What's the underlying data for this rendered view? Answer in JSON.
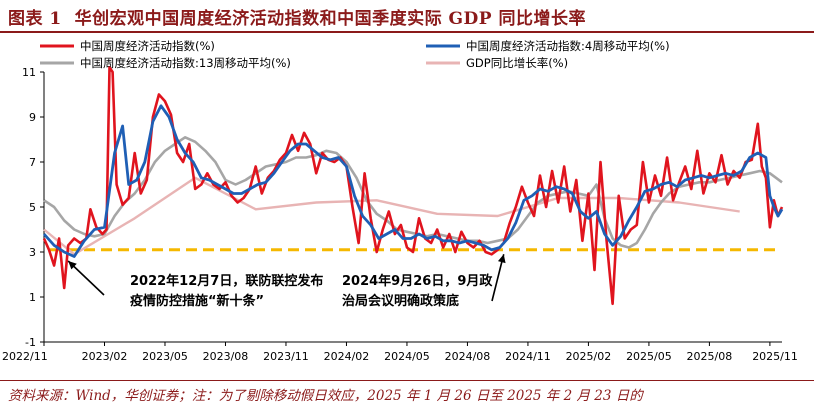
{
  "header": {
    "figure_label": "图表 1",
    "title": "华创宏观中国周度经济活动指数和中国季度实际 GDP 同比增长率"
  },
  "footer": {
    "source_note": "资料来源：Wind，华创证券；注：为了剔除移动假日效应，2025 年 1 月 26 日至 2025 年 2 月 23 日的"
  },
  "colors": {
    "weekly": "#e0141e",
    "ma4": "#1f5fb5",
    "ma13": "#a6a6a6",
    "gdp": "#e8b4b4",
    "ref_line": "#f5b800",
    "title": "#8b1a1a"
  },
  "chart_data": {
    "type": "line",
    "legend": [
      {
        "name": "中国周度经济活动指数(%)",
        "key": "weekly"
      },
      {
        "name": "中国周度经济活动指数:4周移动平均(%)",
        "key": "ma4"
      },
      {
        "name": "中国周度经济活动指数:13周移动平均(%)",
        "key": "ma13"
      },
      {
        "name": "GDP同比增长率(%)",
        "key": "gdp"
      }
    ],
    "legend_position": "top",
    "x_tick_labels": [
      "2022/11",
      "2023/02",
      "2023/05",
      "2023/08",
      "2023/11",
      "2024/02",
      "2024/05",
      "2024/08",
      "2024/11",
      "2025/02",
      "2025/05",
      "2025/08",
      "2025/11"
    ],
    "y_tick_labels": [
      "-1",
      "1",
      "3",
      "5",
      "7",
      "9",
      "11"
    ],
    "ylim": [
      -1,
      11
    ],
    "xlim_months": [
      0,
      36.6
    ],
    "reference_line": 3.1,
    "annotations": [
      {
        "text": [
          "2022年12月7日，联防联控发布",
          "疫情防控措施“新十条”"
        ],
        "target_month": 1.2,
        "target_value": 2.6
      },
      {
        "text": [
          "2024年9月26日，9月政",
          "治局会议明确政策底"
        ],
        "target_month": 22.8,
        "target_value": 2.9
      }
    ],
    "series": {
      "weekly": [
        [
          0,
          3.6
        ],
        [
          0.25,
          3.1
        ],
        [
          0.5,
          2.4
        ],
        [
          0.75,
          3.6
        ],
        [
          1.0,
          1.4
        ],
        [
          1.2,
          3.3
        ],
        [
          1.5,
          3.6
        ],
        [
          1.8,
          3.4
        ],
        [
          2.1,
          3.6
        ],
        [
          2.3,
          4.9
        ],
        [
          2.6,
          4.1
        ],
        [
          2.9,
          3.8
        ],
        [
          3.1,
          4.0
        ],
        [
          3.25,
          11.2
        ],
        [
          3.4,
          11.0
        ],
        [
          3.6,
          6.0
        ],
        [
          3.9,
          5.1
        ],
        [
          4.2,
          5.4
        ],
        [
          4.5,
          7.4
        ],
        [
          4.8,
          5.6
        ],
        [
          5.1,
          6.2
        ],
        [
          5.4,
          9.0
        ],
        [
          5.7,
          10.0
        ],
        [
          6.0,
          9.7
        ],
        [
          6.3,
          9.1
        ],
        [
          6.6,
          7.4
        ],
        [
          6.9,
          7.0
        ],
        [
          7.2,
          7.8
        ],
        [
          7.5,
          5.8
        ],
        [
          7.8,
          6.0
        ],
        [
          8.1,
          6.5
        ],
        [
          8.4,
          6.0
        ],
        [
          8.7,
          5.8
        ],
        [
          9.0,
          6.1
        ],
        [
          9.3,
          5.5
        ],
        [
          9.6,
          5.2
        ],
        [
          9.9,
          5.4
        ],
        [
          10.2,
          5.8
        ],
        [
          10.5,
          6.8
        ],
        [
          10.8,
          5.6
        ],
        [
          11.1,
          6.3
        ],
        [
          11.4,
          6.6
        ],
        [
          11.7,
          7.1
        ],
        [
          12.0,
          7.4
        ],
        [
          12.3,
          8.2
        ],
        [
          12.6,
          7.5
        ],
        [
          12.9,
          8.3
        ],
        [
          13.2,
          7.8
        ],
        [
          13.5,
          6.5
        ],
        [
          13.8,
          7.4
        ],
        [
          14.1,
          7.1
        ],
        [
          14.4,
          7.0
        ],
        [
          14.7,
          7.2
        ],
        [
          15.0,
          6.8
        ],
        [
          15.3,
          5.0
        ],
        [
          15.6,
          3.4
        ],
        [
          15.9,
          6.5
        ],
        [
          16.2,
          4.5
        ],
        [
          16.5,
          3.0
        ],
        [
          16.8,
          4.0
        ],
        [
          17.1,
          4.8
        ],
        [
          17.4,
          3.8
        ],
        [
          17.7,
          4.2
        ],
        [
          18.0,
          3.2
        ],
        [
          18.3,
          3.0
        ],
        [
          18.6,
          4.5
        ],
        [
          18.9,
          3.6
        ],
        [
          19.2,
          3.4
        ],
        [
          19.5,
          4.0
        ],
        [
          19.8,
          3.2
        ],
        [
          20.1,
          3.8
        ],
        [
          20.4,
          3.0
        ],
        [
          20.7,
          3.9
        ],
        [
          21.0,
          3.4
        ],
        [
          21.3,
          3.2
        ],
        [
          21.6,
          3.5
        ],
        [
          21.9,
          3.0
        ],
        [
          22.2,
          2.9
        ],
        [
          22.5,
          3.1
        ],
        [
          22.8,
          3.4
        ],
        [
          23.1,
          4.3
        ],
        [
          23.4,
          5.0
        ],
        [
          23.7,
          5.9
        ],
        [
          24.0,
          5.2
        ],
        [
          24.3,
          4.6
        ],
        [
          24.6,
          6.4
        ],
        [
          24.9,
          5.0
        ],
        [
          25.2,
          6.6
        ],
        [
          25.5,
          5.2
        ],
        [
          25.8,
          6.8
        ],
        [
          26.1,
          4.8
        ],
        [
          26.4,
          6.2
        ],
        [
          26.7,
          3.5
        ],
        [
          27.0,
          5.6
        ],
        [
          27.3,
          2.2
        ],
        [
          27.6,
          7.0
        ],
        [
          27.9,
          3.5
        ],
        [
          28.2,
          0.7
        ],
        [
          28.5,
          5.5
        ],
        [
          28.8,
          3.6
        ],
        [
          29.1,
          4.0
        ],
        [
          29.4,
          4.2
        ],
        [
          29.7,
          7.0
        ],
        [
          30.0,
          5.2
        ],
        [
          30.3,
          6.4
        ],
        [
          30.6,
          5.5
        ],
        [
          30.9,
          7.2
        ],
        [
          31.2,
          5.3
        ],
        [
          31.5,
          6.1
        ],
        [
          31.8,
          6.8
        ],
        [
          32.1,
          5.8
        ],
        [
          32.4,
          7.5
        ],
        [
          32.7,
          5.6
        ],
        [
          33.0,
          6.5
        ],
        [
          33.3,
          6.1
        ],
        [
          33.6,
          7.3
        ],
        [
          33.9,
          6.0
        ],
        [
          34.2,
          6.6
        ],
        [
          34.5,
          6.3
        ],
        [
          34.8,
          7.0
        ],
        [
          35.1,
          7.1
        ],
        [
          35.4,
          8.7
        ],
        [
          35.6,
          6.8
        ],
        [
          35.8,
          6.3
        ],
        [
          36.0,
          4.1
        ],
        [
          36.2,
          5.3
        ],
        [
          36.4,
          4.6
        ],
        [
          36.6,
          5.0
        ]
      ],
      "ma4": [
        [
          0,
          3.8
        ],
        [
          0.5,
          3.3
        ],
        [
          1.0,
          3.0
        ],
        [
          1.5,
          2.8
        ],
        [
          2.0,
          3.5
        ],
        [
          2.5,
          4.0
        ],
        [
          3.0,
          4.1
        ],
        [
          3.5,
          7.4
        ],
        [
          3.9,
          8.6
        ],
        [
          4.2,
          6.0
        ],
        [
          4.6,
          6.2
        ],
        [
          5.0,
          7.0
        ],
        [
          5.4,
          8.8
        ],
        [
          5.8,
          9.5
        ],
        [
          6.2,
          9.0
        ],
        [
          6.6,
          8.0
        ],
        [
          7.0,
          7.4
        ],
        [
          7.4,
          7.0
        ],
        [
          7.8,
          6.3
        ],
        [
          8.2,
          6.2
        ],
        [
          8.6,
          6.0
        ],
        [
          9.0,
          5.8
        ],
        [
          9.4,
          5.6
        ],
        [
          9.8,
          5.6
        ],
        [
          10.2,
          5.8
        ],
        [
          10.6,
          6.0
        ],
        [
          11.0,
          6.1
        ],
        [
          11.4,
          6.5
        ],
        [
          11.8,
          7.0
        ],
        [
          12.2,
          7.5
        ],
        [
          12.6,
          7.8
        ],
        [
          13.0,
          7.8
        ],
        [
          13.4,
          7.5
        ],
        [
          13.8,
          7.2
        ],
        [
          14.2,
          7.1
        ],
        [
          14.6,
          7.2
        ],
        [
          15.0,
          6.8
        ],
        [
          15.4,
          5.5
        ],
        [
          15.8,
          4.6
        ],
        [
          16.2,
          4.2
        ],
        [
          16.6,
          3.6
        ],
        [
          17.0,
          3.8
        ],
        [
          17.4,
          4.0
        ],
        [
          17.8,
          3.6
        ],
        [
          18.2,
          3.6
        ],
        [
          18.6,
          3.8
        ],
        [
          19.0,
          3.6
        ],
        [
          19.4,
          3.7
        ],
        [
          19.8,
          3.5
        ],
        [
          20.2,
          3.5
        ],
        [
          20.6,
          3.4
        ],
        [
          21.0,
          3.5
        ],
        [
          21.4,
          3.4
        ],
        [
          21.8,
          3.3
        ],
        [
          22.2,
          3.1
        ],
        [
          22.6,
          3.2
        ],
        [
          23.0,
          3.6
        ],
        [
          23.4,
          4.3
        ],
        [
          23.8,
          5.3
        ],
        [
          24.2,
          5.5
        ],
        [
          24.6,
          5.8
        ],
        [
          25.0,
          5.7
        ],
        [
          25.4,
          5.9
        ],
        [
          25.8,
          5.8
        ],
        [
          26.2,
          5.6
        ],
        [
          26.6,
          4.8
        ],
        [
          27.0,
          4.5
        ],
        [
          27.4,
          4.8
        ],
        [
          27.8,
          3.8
        ],
        [
          28.2,
          3.3
        ],
        [
          28.6,
          3.7
        ],
        [
          29.0,
          4.4
        ],
        [
          29.4,
          5.0
        ],
        [
          29.8,
          5.7
        ],
        [
          30.2,
          5.8
        ],
        [
          30.6,
          6.0
        ],
        [
          31.0,
          6.1
        ],
        [
          31.4,
          5.9
        ],
        [
          31.8,
          6.2
        ],
        [
          32.2,
          6.3
        ],
        [
          32.6,
          6.4
        ],
        [
          33.0,
          6.3
        ],
        [
          33.4,
          6.4
        ],
        [
          33.8,
          6.5
        ],
        [
          34.2,
          6.4
        ],
        [
          34.6,
          6.6
        ],
        [
          35.0,
          7.2
        ],
        [
          35.4,
          7.4
        ],
        [
          35.8,
          7.2
        ],
        [
          36.0,
          5.5
        ],
        [
          36.2,
          5.0
        ],
        [
          36.4,
          4.6
        ],
        [
          36.6,
          4.9
        ]
      ],
      "ma13": [
        [
          0,
          5.3
        ],
        [
          0.5,
          5.0
        ],
        [
          1.0,
          4.4
        ],
        [
          1.5,
          4.0
        ],
        [
          2.0,
          3.8
        ],
        [
          2.5,
          3.7
        ],
        [
          3.0,
          3.8
        ],
        [
          3.5,
          4.6
        ],
        [
          4.0,
          5.2
        ],
        [
          4.5,
          5.6
        ],
        [
          5.0,
          6.2
        ],
        [
          5.5,
          7.0
        ],
        [
          6.0,
          7.5
        ],
        [
          6.5,
          7.8
        ],
        [
          7.0,
          8.1
        ],
        [
          7.5,
          7.9
        ],
        [
          8.0,
          7.5
        ],
        [
          8.5,
          7.0
        ],
        [
          9.0,
          6.2
        ],
        [
          9.5,
          6.0
        ],
        [
          10.0,
          6.2
        ],
        [
          10.5,
          6.5
        ],
        [
          11.0,
          6.8
        ],
        [
          11.5,
          6.9
        ],
        [
          12.0,
          7.0
        ],
        [
          12.5,
          7.2
        ],
        [
          13.0,
          7.2
        ],
        [
          13.5,
          7.3
        ],
        [
          14.0,
          7.5
        ],
        [
          14.5,
          7.4
        ],
        [
          15.0,
          7.0
        ],
        [
          15.5,
          6.3
        ],
        [
          16.0,
          5.3
        ],
        [
          16.5,
          4.7
        ],
        [
          17.0,
          4.4
        ],
        [
          17.5,
          4.0
        ],
        [
          18.0,
          3.9
        ],
        [
          18.5,
          3.8
        ],
        [
          19.0,
          3.7
        ],
        [
          19.5,
          3.8
        ],
        [
          20.0,
          3.7
        ],
        [
          20.5,
          3.6
        ],
        [
          21.0,
          3.5
        ],
        [
          21.5,
          3.5
        ],
        [
          22.0,
          3.4
        ],
        [
          22.5,
          3.5
        ],
        [
          23.0,
          3.6
        ],
        [
          23.5,
          4.0
        ],
        [
          24.0,
          4.6
        ],
        [
          24.5,
          5.2
        ],
        [
          25.0,
          5.5
        ],
        [
          25.5,
          5.6
        ],
        [
          26.0,
          5.7
        ],
        [
          26.5,
          5.6
        ],
        [
          27.0,
          5.5
        ],
        [
          27.4,
          6.0
        ],
        [
          27.8,
          4.5
        ],
        [
          28.2,
          3.6
        ],
        [
          28.6,
          3.3
        ],
        [
          29.0,
          3.2
        ],
        [
          29.4,
          3.4
        ],
        [
          29.8,
          4.0
        ],
        [
          30.2,
          4.7
        ],
        [
          30.6,
          5.2
        ],
        [
          31.0,
          5.6
        ],
        [
          31.5,
          5.9
        ],
        [
          32.0,
          6.0
        ],
        [
          32.5,
          6.1
        ],
        [
          33.0,
          6.1
        ],
        [
          33.5,
          6.2
        ],
        [
          34.0,
          6.3
        ],
        [
          34.5,
          6.4
        ],
        [
          35.0,
          6.5
        ],
        [
          35.5,
          6.6
        ],
        [
          36.0,
          6.5
        ],
        [
          36.3,
          6.3
        ],
        [
          36.6,
          6.1
        ]
      ],
      "gdp": [
        [
          0,
          4.0
        ],
        [
          1.5,
          2.9
        ],
        [
          4.5,
          4.5
        ],
        [
          7.5,
          6.3
        ],
        [
          10.5,
          4.9
        ],
        [
          13.5,
          5.2
        ],
        [
          16.5,
          5.3
        ],
        [
          19.5,
          4.7
        ],
        [
          22.5,
          4.6
        ],
        [
          25.5,
          5.4
        ],
        [
          28.5,
          5.4
        ],
        [
          31.5,
          5.2
        ],
        [
          34.5,
          4.8
        ]
      ]
    }
  }
}
